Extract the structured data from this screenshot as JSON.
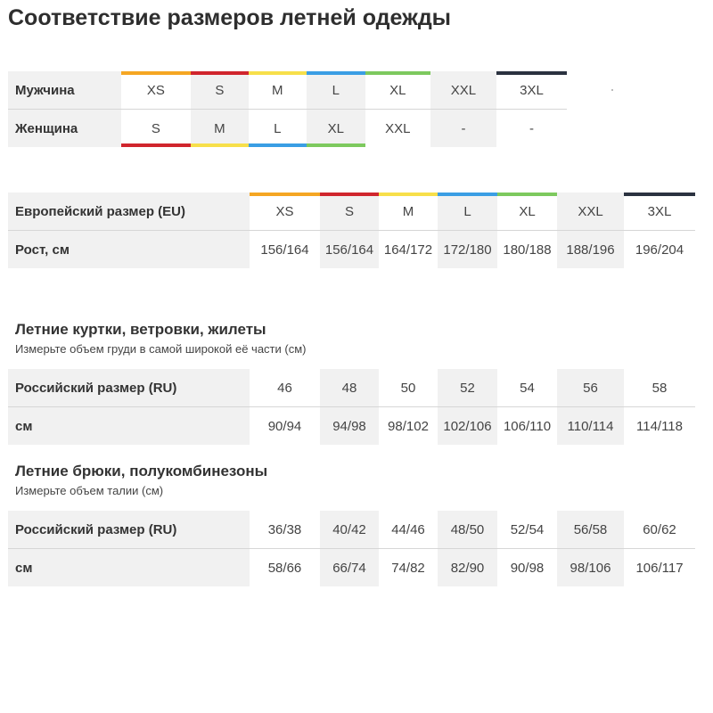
{
  "title": "Соответствие размеров летней одежды",
  "colors": {
    "XS": "#f5a623",
    "S": "#d0252d",
    "M": "#f7df4a",
    "L": "#3a9ee4",
    "XL": "#7dc95e",
    "XXL": "#ffffff",
    "3XL": "#2b3240"
  },
  "gender_table": {
    "man_label": "Мужчина",
    "woman_label": "Женщина",
    "man": [
      "XS",
      "S",
      "M",
      "L",
      "XL",
      "XXL",
      "3XL"
    ],
    "woman": [
      "S",
      "M",
      "L",
      "XL",
      "XXL",
      "-",
      "-"
    ],
    "woman_colors": [
      "S",
      "M",
      "L",
      "XL",
      "",
      "",
      ""
    ]
  },
  "eu_table": {
    "size_label": "Европейский размер (EU)",
    "height_label": "Рост, см",
    "sizes": [
      "XS",
      "S",
      "M",
      "L",
      "XL",
      "XXL",
      "3XL"
    ],
    "heights": [
      "156/164",
      "156/164",
      "164/172",
      "172/180",
      "180/188",
      "188/196",
      "196/204"
    ]
  },
  "jackets": {
    "heading": "Летние куртки, ветровки, жилеты",
    "subheading": "Измерьте объем груди в самой широкой её части (см)",
    "ru_label": "Российский размер (RU)",
    "cm_label": "см",
    "ru": [
      "46",
      "48",
      "50",
      "52",
      "54",
      "56",
      "58"
    ],
    "cm": [
      "90/94",
      "94/98",
      "98/102",
      "102/106",
      "106/110",
      "110/114",
      "114/118"
    ]
  },
  "trousers": {
    "heading": "Летние брюки, полукомбинезоны",
    "subheading": "Измерьте объем талии (см)",
    "ru_label": "Российский размер (RU)",
    "cm_label": "см",
    "ru": [
      "36/38",
      "40/42",
      "44/46",
      "48/50",
      "52/54",
      "56/58",
      "60/62"
    ],
    "cm": [
      "58/66",
      "66/74",
      "74/82",
      "82/90",
      "90/98",
      "98/106",
      "106/117"
    ]
  }
}
